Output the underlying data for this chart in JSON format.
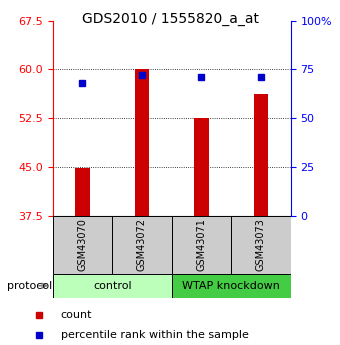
{
  "title": "GDS2010 / 1555820_a_at",
  "samples": [
    "GSM43070",
    "GSM43072",
    "GSM43071",
    "GSM43073"
  ],
  "bar_values": [
    44.8,
    60.1,
    52.6,
    56.2
  ],
  "bar_baseline": 37.5,
  "percentile_values": [
    68.0,
    72.0,
    71.0,
    71.0
  ],
  "bar_color": "#cc0000",
  "percentile_color": "#0000cc",
  "ylim_left": [
    37.5,
    67.5
  ],
  "ylim_right": [
    0,
    100
  ],
  "yticks_left": [
    37.5,
    45.0,
    52.5,
    60.0,
    67.5
  ],
  "yticks_right": [
    0,
    25,
    50,
    75,
    100
  ],
  "ytick_labels_right": [
    "0",
    "25",
    "50",
    "75",
    "100%"
  ],
  "groups": [
    {
      "label": "control",
      "samples": [
        0,
        1
      ],
      "color": "#bbffbb"
    },
    {
      "label": "WTAP knockdown",
      "samples": [
        2,
        3
      ],
      "color": "#44cc44"
    }
  ],
  "protocol_label": "protocol",
  "legend_count_label": "count",
  "legend_percentile_label": "percentile rank within the sample",
  "label_box_color": "#cccccc",
  "bar_width": 0.25,
  "title_fontsize": 10,
  "tick_fontsize": 8,
  "sample_fontsize": 7,
  "legend_fontsize": 8,
  "protocol_fontsize": 8
}
